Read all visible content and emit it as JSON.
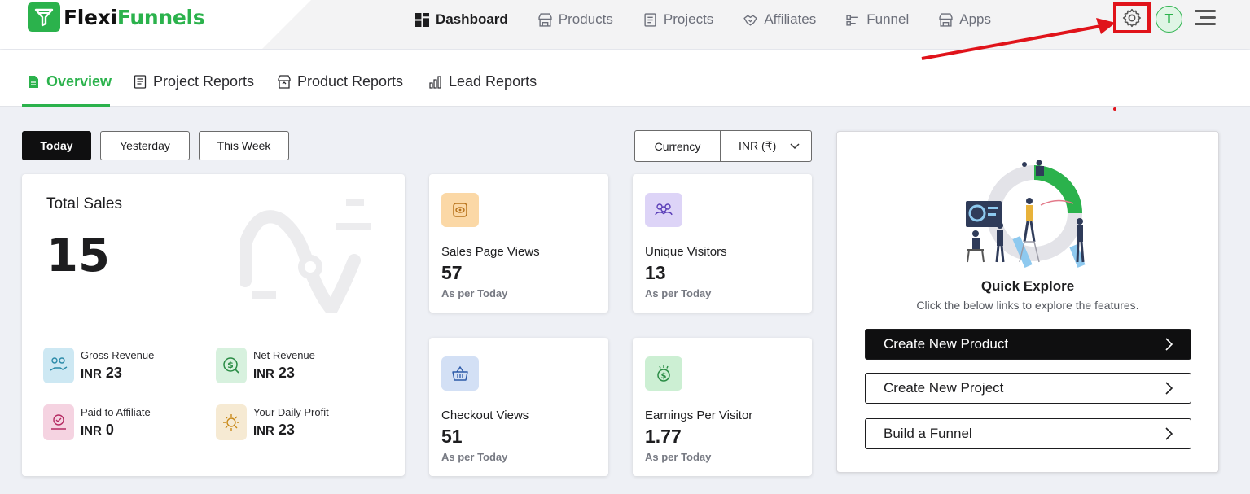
{
  "brand": {
    "name_part1": "Flexi",
    "name_part2": "Funnels",
    "accent": "#2bb24c"
  },
  "nav": [
    {
      "label": "Dashboard",
      "icon": "dashboard-grid-icon",
      "active": true
    },
    {
      "label": "Products",
      "icon": "store-icon"
    },
    {
      "label": "Projects",
      "icon": "document-icon"
    },
    {
      "label": "Affiliates",
      "icon": "handshake-icon"
    },
    {
      "label": "Funnel",
      "icon": "funnel-icon"
    },
    {
      "label": "Apps",
      "icon": "store-icon"
    }
  ],
  "header": {
    "avatar_initial": "T",
    "settings_icon": "gear-icon",
    "menu_icon": "hamburger-icon",
    "highlight_color": "#e0131a"
  },
  "tabs": [
    {
      "label": "Overview",
      "active": true
    },
    {
      "label": "Project Reports"
    },
    {
      "label": "Product Reports"
    },
    {
      "label": "Lead Reports"
    }
  ],
  "filters": {
    "today": "Today",
    "yesterday": "Yesterday",
    "this_week": "This Week",
    "currency_label": "Currency",
    "currency_value": "INR (₹)"
  },
  "total_sales": {
    "title": "Total Sales",
    "value": "15",
    "metrics": [
      {
        "label": "Gross Revenue",
        "currency": "INR",
        "value": "23"
      },
      {
        "label": "Net Revenue",
        "currency": "INR",
        "value": "23"
      },
      {
        "label": "Paid to Affiliate",
        "currency": "INR",
        "value": "0"
      },
      {
        "label": "Your Daily Profit",
        "currency": "INR",
        "value": "23"
      }
    ]
  },
  "stats": [
    {
      "label": "Sales Page Views",
      "value": "57",
      "sub": "As per Today"
    },
    {
      "label": "Unique Visitors",
      "value": "13",
      "sub": "As per Today"
    },
    {
      "label": "Checkout Views",
      "value": "51",
      "sub": "As per Today"
    },
    {
      "label": "Earnings Per Visitor",
      "value": "1.77",
      "sub": "As per Today"
    }
  ],
  "quick_explore": {
    "title": "Quick Explore",
    "subtitle": "Click the below links to explore the features.",
    "buttons": [
      "Create New Product",
      "Create New Project",
      "Build a Funnel"
    ]
  }
}
